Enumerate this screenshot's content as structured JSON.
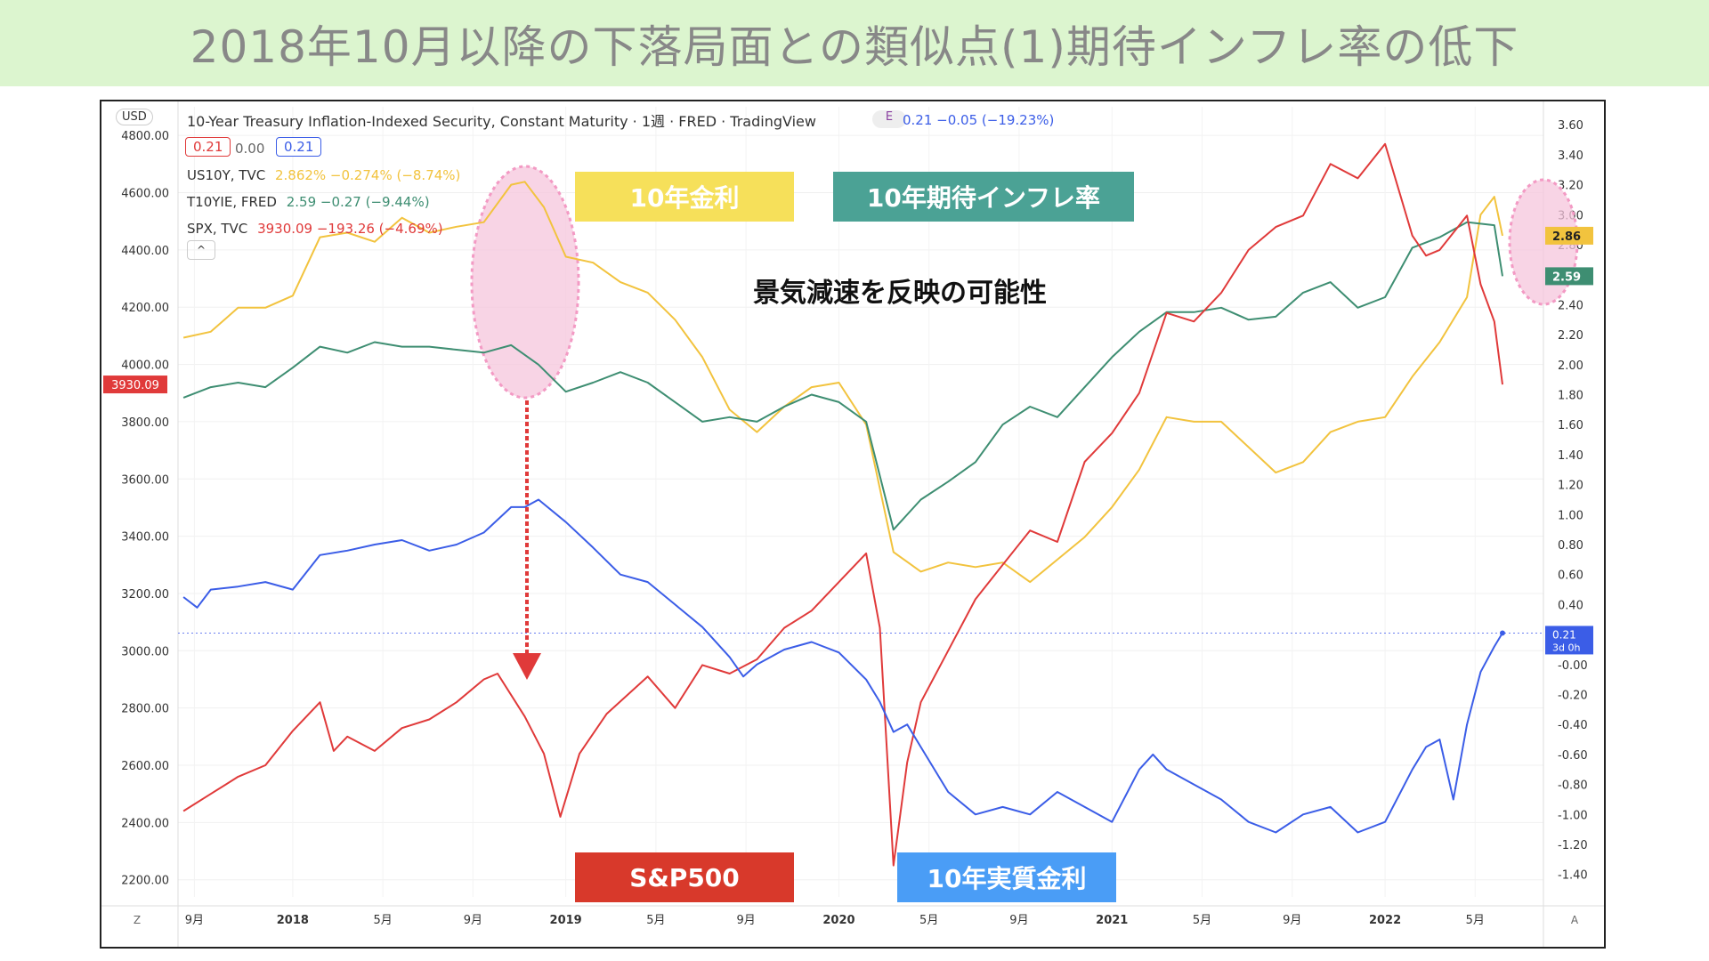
{
  "banner": {
    "title": "2018年10月以降の下落局面との類似点(1)期待インフレ率の低下"
  },
  "header": {
    "currency": "USD",
    "title": "10-Year Treasury Inflation-Indexed Security, Constant Maturity · 1週 · FRED · TradingView",
    "e_badge": "E",
    "headline_value": "0.21 −0.05 (−19.23%)",
    "pill_red": "0.21",
    "pill_zero": "0.00",
    "pill_blue": "0.21",
    "collapse": "^"
  },
  "legend": {
    "us10y_label": "US10Y, TVC",
    "us10y_values": "2.862% −0.274% (−8.74%)",
    "t10yie_label": "T10YIE, FRED",
    "t10yie_values": "2.59 −0.27 (−9.44%)",
    "spx_label": "SPX, TVC",
    "spx_values": "3930.09 −193.26 (−4.69%)"
  },
  "annotations": {
    "us10y_chip": "10年金利",
    "t10yie_chip": "10年期待インフレ率",
    "spx_chip": "S&P500",
    "real_chip": "10年実質金利",
    "note": "景気減速を反映の可能性"
  },
  "colors": {
    "us10y": "#f2c33e",
    "t10yie": "#3e8e72",
    "spx": "#e03a3a",
    "real": "#3b5de7",
    "chip_yellow": "#f6e05a",
    "chip_teal": "#4ba295",
    "chip_red": "#d8392b",
    "chip_blue": "#4a9df6",
    "highlight": "#f6c6dc"
  },
  "chart_data": {
    "type": "line",
    "title": "10-Year Treasury Inflation-Indexed Security, Constant Maturity",
    "x_ticks": [
      "9月",
      "2018",
      "5月",
      "9月",
      "2019",
      "5月",
      "9月",
      "2020",
      "5月",
      "9月",
      "2021",
      "5月",
      "9月",
      "2022",
      "5月"
    ],
    "x_range": [
      2017.58,
      2022.58
    ],
    "left_axis": {
      "label": "",
      "range": [
        2140,
        4900
      ],
      "ticks": [
        "4800.00",
        "4600.00",
        "4400.00",
        "4200.00",
        "4000.00",
        "3800.00",
        "3600.00",
        "3400.00",
        "3200.00",
        "3000.00",
        "2800.00",
        "2600.00",
        "2400.00",
        "2200.00"
      ],
      "last_value_label": "3930.09"
    },
    "right_axis": {
      "label": "",
      "range": [
        -1.55,
        3.72
      ],
      "ticks": [
        "3.60",
        "3.40",
        "3.20",
        "3.00",
        "2.80",
        "2.60",
        "2.40",
        "2.20",
        "2.00",
        "1.80",
        "1.60",
        "1.40",
        "1.20",
        "1.00",
        "0.80",
        "0.60",
        "0.40",
        "-0.00",
        "-0.20",
        "-0.40",
        "-0.60",
        "-0.80",
        "-1.00",
        "-1.20",
        "-1.40"
      ],
      "last_labels": {
        "us10y": "2.86",
        "t10yie": "2.59",
        "real": "0.21",
        "real_sub": "3d 0h"
      }
    },
    "series": [
      {
        "name": "US10Y, TVC",
        "axis": "right",
        "color": "#f2c33e",
        "points": [
          [
            2017.6,
            2.18
          ],
          [
            2017.7,
            2.22
          ],
          [
            2017.8,
            2.38
          ],
          [
            2017.9,
            2.38
          ],
          [
            2018.0,
            2.46
          ],
          [
            2018.1,
            2.85
          ],
          [
            2018.2,
            2.88
          ],
          [
            2018.3,
            2.82
          ],
          [
            2018.4,
            2.98
          ],
          [
            2018.5,
            2.88
          ],
          [
            2018.6,
            2.92
          ],
          [
            2018.7,
            2.95
          ],
          [
            2018.8,
            3.2
          ],
          [
            2018.85,
            3.22
          ],
          [
            2018.92,
            3.05
          ],
          [
            2019.0,
            2.72
          ],
          [
            2019.1,
            2.68
          ],
          [
            2019.2,
            2.55
          ],
          [
            2019.3,
            2.48
          ],
          [
            2019.4,
            2.3
          ],
          [
            2019.5,
            2.05
          ],
          [
            2019.6,
            1.7
          ],
          [
            2019.7,
            1.55
          ],
          [
            2019.8,
            1.72
          ],
          [
            2019.9,
            1.85
          ],
          [
            2020.0,
            1.88
          ],
          [
            2020.1,
            1.6
          ],
          [
            2020.2,
            0.75
          ],
          [
            2020.3,
            0.62
          ],
          [
            2020.4,
            0.68
          ],
          [
            2020.5,
            0.65
          ],
          [
            2020.6,
            0.68
          ],
          [
            2020.7,
            0.55
          ],
          [
            2020.8,
            0.7
          ],
          [
            2020.9,
            0.85
          ],
          [
            2021.0,
            1.05
          ],
          [
            2021.1,
            1.3
          ],
          [
            2021.2,
            1.65
          ],
          [
            2021.3,
            1.62
          ],
          [
            2021.4,
            1.62
          ],
          [
            2021.5,
            1.45
          ],
          [
            2021.6,
            1.28
          ],
          [
            2021.7,
            1.35
          ],
          [
            2021.8,
            1.55
          ],
          [
            2021.9,
            1.62
          ],
          [
            2022.0,
            1.65
          ],
          [
            2022.1,
            1.92
          ],
          [
            2022.2,
            2.15
          ],
          [
            2022.3,
            2.45
          ],
          [
            2022.35,
            3.0
          ],
          [
            2022.4,
            3.12
          ],
          [
            2022.43,
            2.86
          ]
        ]
      },
      {
        "name": "T10YIE, FRED",
        "axis": "right",
        "color": "#3e8e72",
        "points": [
          [
            2017.6,
            1.78
          ],
          [
            2017.7,
            1.85
          ],
          [
            2017.8,
            1.88
          ],
          [
            2017.9,
            1.85
          ],
          [
            2018.0,
            1.98
          ],
          [
            2018.1,
            2.12
          ],
          [
            2018.2,
            2.08
          ],
          [
            2018.3,
            2.15
          ],
          [
            2018.4,
            2.12
          ],
          [
            2018.5,
            2.12
          ],
          [
            2018.6,
            2.1
          ],
          [
            2018.7,
            2.08
          ],
          [
            2018.8,
            2.13
          ],
          [
            2018.9,
            2.0
          ],
          [
            2019.0,
            1.82
          ],
          [
            2019.1,
            1.88
          ],
          [
            2019.2,
            1.95
          ],
          [
            2019.3,
            1.88
          ],
          [
            2019.4,
            1.75
          ],
          [
            2019.5,
            1.62
          ],
          [
            2019.6,
            1.65
          ],
          [
            2019.7,
            1.62
          ],
          [
            2019.8,
            1.72
          ],
          [
            2019.9,
            1.8
          ],
          [
            2020.0,
            1.75
          ],
          [
            2020.1,
            1.62
          ],
          [
            2020.2,
            0.9
          ],
          [
            2020.3,
            1.1
          ],
          [
            2020.4,
            1.22
          ],
          [
            2020.5,
            1.35
          ],
          [
            2020.6,
            1.6
          ],
          [
            2020.7,
            1.72
          ],
          [
            2020.8,
            1.65
          ],
          [
            2020.9,
            1.85
          ],
          [
            2021.0,
            2.05
          ],
          [
            2021.1,
            2.22
          ],
          [
            2021.2,
            2.35
          ],
          [
            2021.3,
            2.35
          ],
          [
            2021.4,
            2.38
          ],
          [
            2021.5,
            2.3
          ],
          [
            2021.6,
            2.32
          ],
          [
            2021.7,
            2.48
          ],
          [
            2021.8,
            2.55
          ],
          [
            2021.9,
            2.38
          ],
          [
            2022.0,
            2.45
          ],
          [
            2022.1,
            2.78
          ],
          [
            2022.2,
            2.85
          ],
          [
            2022.3,
            2.95
          ],
          [
            2022.4,
            2.93
          ],
          [
            2022.43,
            2.59
          ]
        ]
      },
      {
        "name": "SPX, TVC",
        "axis": "left",
        "color": "#e03a3a",
        "points": [
          [
            2017.6,
            2440
          ],
          [
            2017.7,
            2500
          ],
          [
            2017.8,
            2560
          ],
          [
            2017.9,
            2600
          ],
          [
            2018.0,
            2720
          ],
          [
            2018.1,
            2820
          ],
          [
            2018.15,
            2650
          ],
          [
            2018.2,
            2700
          ],
          [
            2018.3,
            2650
          ],
          [
            2018.4,
            2730
          ],
          [
            2018.5,
            2760
          ],
          [
            2018.6,
            2820
          ],
          [
            2018.7,
            2900
          ],
          [
            2018.75,
            2920
          ],
          [
            2018.85,
            2770
          ],
          [
            2018.92,
            2640
          ],
          [
            2018.98,
            2420
          ],
          [
            2019.05,
            2640
          ],
          [
            2019.15,
            2780
          ],
          [
            2019.3,
            2910
          ],
          [
            2019.4,
            2800
          ],
          [
            2019.5,
            2950
          ],
          [
            2019.6,
            2920
          ],
          [
            2019.7,
            2970
          ],
          [
            2019.8,
            3080
          ],
          [
            2019.9,
            3140
          ],
          [
            2020.0,
            3240
          ],
          [
            2020.1,
            3340
          ],
          [
            2020.15,
            3080
          ],
          [
            2020.2,
            2250
          ],
          [
            2020.25,
            2610
          ],
          [
            2020.3,
            2820
          ],
          [
            2020.4,
            3000
          ],
          [
            2020.5,
            3180
          ],
          [
            2020.6,
            3300
          ],
          [
            2020.7,
            3420
          ],
          [
            2020.8,
            3380
          ],
          [
            2020.9,
            3660
          ],
          [
            2021.0,
            3760
          ],
          [
            2021.1,
            3900
          ],
          [
            2021.2,
            4180
          ],
          [
            2021.3,
            4150
          ],
          [
            2021.4,
            4250
          ],
          [
            2021.5,
            4400
          ],
          [
            2021.6,
            4480
          ],
          [
            2021.7,
            4520
          ],
          [
            2021.8,
            4700
          ],
          [
            2021.9,
            4650
          ],
          [
            2022.0,
            4770
          ],
          [
            2022.1,
            4450
          ],
          [
            2022.15,
            4380
          ],
          [
            2022.2,
            4400
          ],
          [
            2022.3,
            4520
          ],
          [
            2022.35,
            4280
          ],
          [
            2022.4,
            4150
          ],
          [
            2022.43,
            3930.09
          ]
        ]
      },
      {
        "name": "10-Year Treasury Inflation-Indexed Security",
        "axis": "right",
        "color": "#3b5de7",
        "points": [
          [
            2017.6,
            0.45
          ],
          [
            2017.65,
            0.38
          ],
          [
            2017.7,
            0.5
          ],
          [
            2017.8,
            0.52
          ],
          [
            2017.9,
            0.55
          ],
          [
            2018.0,
            0.5
          ],
          [
            2018.1,
            0.73
          ],
          [
            2018.2,
            0.76
          ],
          [
            2018.3,
            0.8
          ],
          [
            2018.4,
            0.83
          ],
          [
            2018.5,
            0.76
          ],
          [
            2018.6,
            0.8
          ],
          [
            2018.7,
            0.88
          ],
          [
            2018.8,
            1.05
          ],
          [
            2018.85,
            1.05
          ],
          [
            2018.9,
            1.1
          ],
          [
            2019.0,
            0.95
          ],
          [
            2019.1,
            0.78
          ],
          [
            2019.2,
            0.6
          ],
          [
            2019.3,
            0.55
          ],
          [
            2019.4,
            0.4
          ],
          [
            2019.5,
            0.25
          ],
          [
            2019.6,
            0.05
          ],
          [
            2019.65,
            -0.08
          ],
          [
            2019.7,
            0.0
          ],
          [
            2019.8,
            0.1
          ],
          [
            2019.9,
            0.15
          ],
          [
            2020.0,
            0.08
          ],
          [
            2020.1,
            -0.1
          ],
          [
            2020.15,
            -0.25
          ],
          [
            2020.2,
            -0.45
          ],
          [
            2020.25,
            -0.4
          ],
          [
            2020.3,
            -0.55
          ],
          [
            2020.4,
            -0.85
          ],
          [
            2020.5,
            -1.0
          ],
          [
            2020.6,
            -0.95
          ],
          [
            2020.7,
            -1.0
          ],
          [
            2020.8,
            -0.85
          ],
          [
            2020.9,
            -0.95
          ],
          [
            2021.0,
            -1.05
          ],
          [
            2021.1,
            -0.7
          ],
          [
            2021.15,
            -0.6
          ],
          [
            2021.2,
            -0.7
          ],
          [
            2021.3,
            -0.8
          ],
          [
            2021.4,
            -0.9
          ],
          [
            2021.5,
            -1.05
          ],
          [
            2021.6,
            -1.12
          ],
          [
            2021.7,
            -1.0
          ],
          [
            2021.8,
            -0.95
          ],
          [
            2021.9,
            -1.12
          ],
          [
            2022.0,
            -1.05
          ],
          [
            2022.1,
            -0.7
          ],
          [
            2022.15,
            -0.55
          ],
          [
            2022.2,
            -0.5
          ],
          [
            2022.25,
            -0.9
          ],
          [
            2022.3,
            -0.4
          ],
          [
            2022.35,
            -0.05
          ],
          [
            2022.4,
            0.12
          ],
          [
            2022.43,
            0.21
          ]
        ]
      }
    ],
    "grid": true,
    "legend_position": "top-left"
  }
}
